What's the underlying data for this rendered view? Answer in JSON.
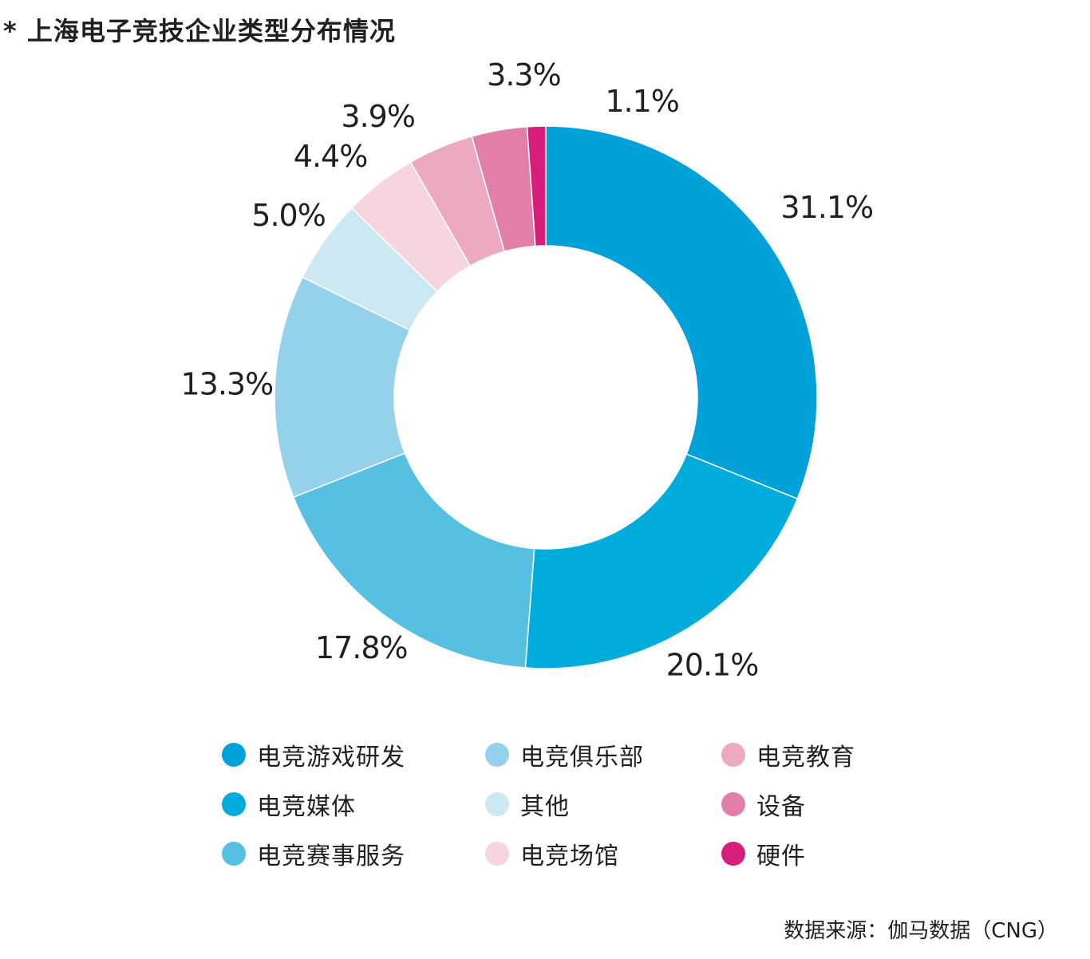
{
  "title": "* 上海电子竞技企业类型分布情况",
  "source": "数据来源：伽马数据（CNG）",
  "chart_data": {
    "type": "pie",
    "title": "* 上海电子竞技企业类型分布情况",
    "donut": true,
    "unit": "%",
    "slices": [
      {
        "label": "电竞游戏研发",
        "value": 31.1,
        "display": "31.1%",
        "color": "#00a1d8"
      },
      {
        "label": "电竞媒体",
        "value": 20.1,
        "display": "20.1%",
        "color": "#00acdc"
      },
      {
        "label": "电竞赛事服务",
        "value": 17.8,
        "display": "17.8%",
        "color": "#56c0e3"
      },
      {
        "label": "电竞俱乐部",
        "value": 13.3,
        "display": "13.3%",
        "color": "#93d2ea"
      },
      {
        "label": "其他",
        "value": 5.0,
        "display": "5.0%",
        "color": "#cce8f2"
      },
      {
        "label": "电竞场馆",
        "value": 4.4,
        "display": "4.4%",
        "color": "#f7d5df"
      },
      {
        "label": "电竞教育",
        "value": 3.9,
        "display": "3.9%",
        "color": "#eda9c1"
      },
      {
        "label": "设备",
        "value": 3.3,
        "display": "3.3%",
        "color": "#e27fa9"
      },
      {
        "label": "硬件",
        "value": 1.1,
        "display": "1.1%",
        "color": "#d81e7d"
      }
    ],
    "legend_placement": "bottom",
    "legend_order": [
      "电竞游戏研发",
      "电竞媒体",
      "电竞赛事服务",
      "电竞俱乐部",
      "其他",
      "电竞场馆",
      "电竞教育",
      "设备",
      "硬件"
    ]
  }
}
